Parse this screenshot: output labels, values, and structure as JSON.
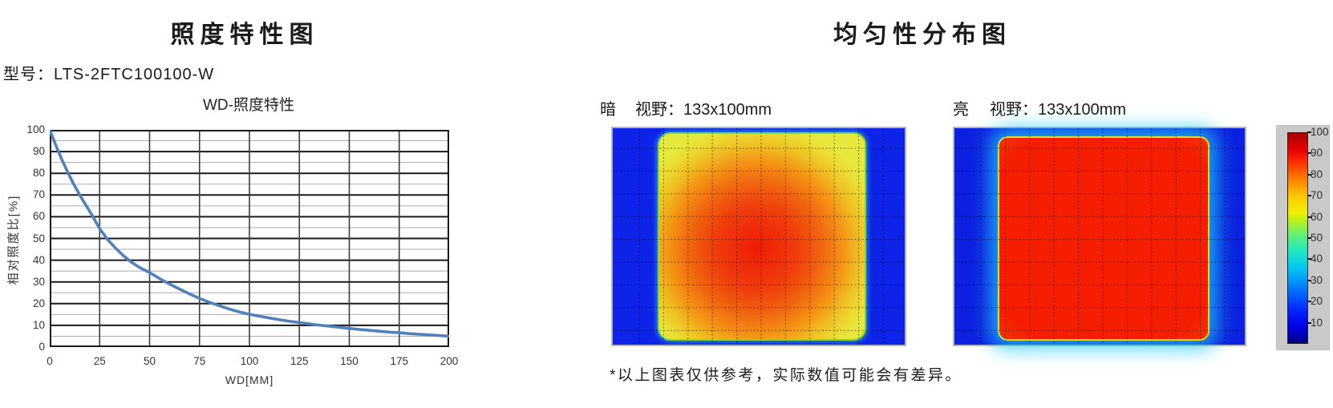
{
  "left_section": {
    "title": "照度特性图",
    "model_label": "型号：LTS-2FTC100100-W"
  },
  "right_section": {
    "title": "均匀性分布图",
    "dark_panel_tag": "暗",
    "dark_panel_fov": "视野：133x100mm",
    "bright_panel_tag": "亮",
    "bright_panel_fov": "视野：133x100mm",
    "colorbar_ticks": [
      100,
      90,
      80,
      70,
      60,
      50,
      40,
      30,
      20,
      10
    ],
    "footnote": "*以上图表仅供参考，实际数值可能会有差异。"
  },
  "colors": {
    "curve": "#4f81bd",
    "grid_major": "#1a1a1a",
    "grid_minor": "#ababab",
    "grid_vertical": "#3c3c3c",
    "heat_background_blue": "#0d24e8",
    "heat_center_red": "#f32000",
    "heat_edge_yellow": "#ece23a",
    "colorbar_bg": "#c9c9c9"
  },
  "chart_data": [
    {
      "type": "line",
      "title": "WD-照度特性",
      "xlabel": "WD[MM]",
      "ylabel": "相对照度比[%]",
      "xlim": [
        0,
        200
      ],
      "ylim": [
        0,
        100
      ],
      "xticks": [
        0,
        25,
        50,
        75,
        100,
        125,
        150,
        175,
        200
      ],
      "yticks": [
        0,
        10,
        20,
        30,
        40,
        50,
        60,
        70,
        80,
        90,
        100
      ],
      "grid": "horizontal major every 10 (dark), minor every 5 (light); vertical every 25",
      "legend": "none",
      "key_points": {
        "x": [
          0,
          25,
          50,
          75,
          100,
          125,
          150,
          175,
          200
        ],
        "y": [
          100,
          54.5,
          34.3,
          22.4,
          15.1,
          11.3,
          8.6,
          6.6,
          5.0
        ]
      },
      "series": [
        {
          "name": "相对照度比",
          "x": [
            0,
            3,
            6,
            9,
            12,
            15,
            18,
            21,
            25,
            29,
            33,
            37,
            41,
            45,
            50,
            55,
            60,
            65,
            70,
            75,
            80,
            85,
            90,
            95,
            100,
            105,
            110,
            115,
            120,
            125,
            130,
            135,
            140,
            145,
            150,
            155,
            160,
            165,
            170,
            175,
            180,
            185,
            190,
            195,
            200
          ],
          "y": [
            100,
            93,
            86.5,
            80.5,
            75,
            70,
            65.5,
            61,
            54.5,
            49.5,
            45.5,
            42,
            39,
            36.6,
            34.3,
            31.5,
            29,
            26.7,
            24.5,
            22.4,
            20.6,
            19,
            17.5,
            16.2,
            15.1,
            14.2,
            13.4,
            12.6,
            11.9,
            11.3,
            10.7,
            10.1,
            9.6,
            9.1,
            8.6,
            8.1,
            7.7,
            7.3,
            6.9,
            6.6,
            6.2,
            5.9,
            5.6,
            5.3,
            5.0
          ]
        }
      ]
    },
    {
      "type": "heatmap",
      "label": "暗",
      "fov": "视野：133x100mm",
      "colorbar_range": [
        0,
        100
      ],
      "description": "Rounded-square light field on dark-blue (~5%) background; edges yellow (~60%) grading through orange to red (~90%) at center; dashed black grid overlay."
    },
    {
      "type": "heatmap",
      "label": "亮",
      "fov": "视野：133x100mm",
      "colorbar_range": [
        0,
        100
      ],
      "description": "Uniform saturated red (~90-100%) rounded-square field with thin yellow-green rim and cyan halo on dark-blue background; dashed black grid overlay."
    }
  ]
}
